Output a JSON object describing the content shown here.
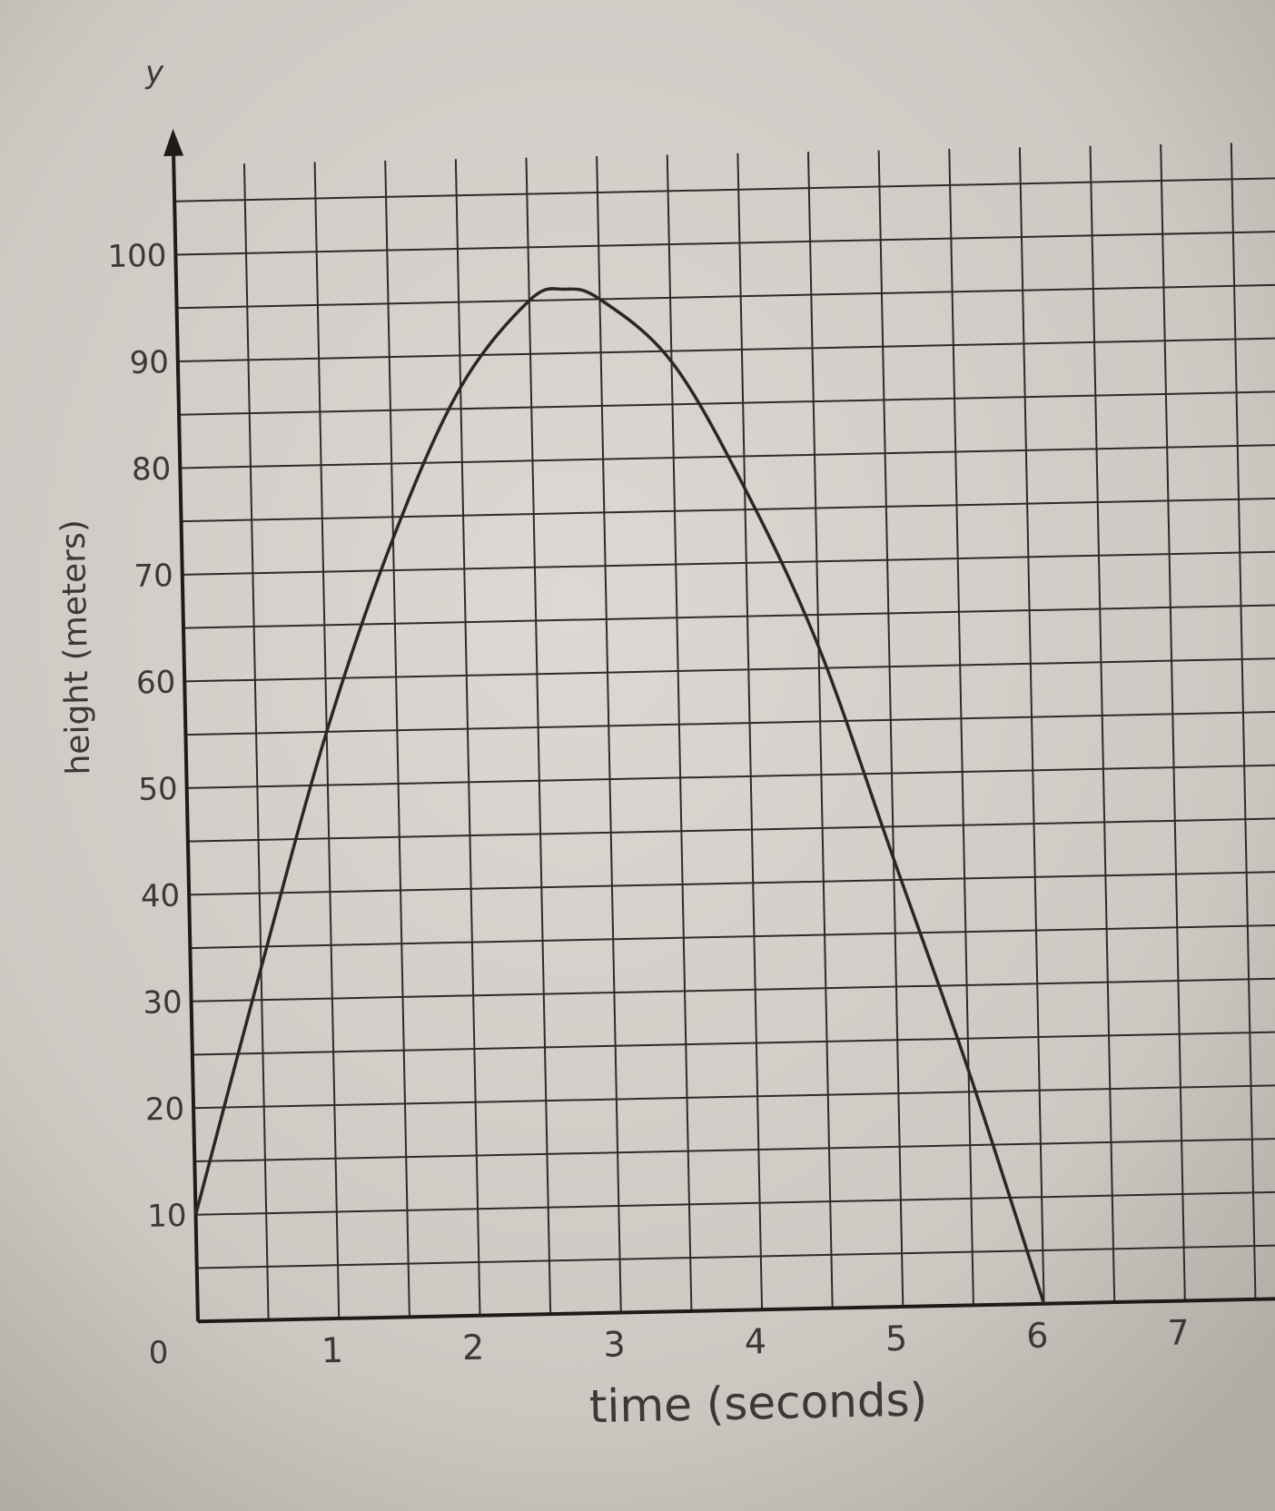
{
  "chart_data": {
    "type": "line",
    "title": "",
    "xlabel": "time (seconds)",
    "ylabel": "height (meters)",
    "y_axis_letter": "y",
    "origin_label": "0",
    "xlim": [
      0,
      7.5
    ],
    "ylim": [
      0,
      105
    ],
    "x_ticks": [
      1,
      2,
      3,
      4,
      5,
      6,
      7
    ],
    "y_ticks": [
      10,
      20,
      30,
      40,
      50,
      60,
      70,
      80,
      90,
      100
    ],
    "x_tick_labels": [
      "1",
      "2",
      "3",
      "4",
      "5",
      "6",
      "7"
    ],
    "y_tick_labels": [
      "10",
      "20",
      "30",
      "40",
      "50",
      "60",
      "70",
      "80",
      "90",
      "100"
    ],
    "grid": true,
    "grid_minor_step_x": 0.5,
    "grid_minor_step_y": 5,
    "series": [
      {
        "x": [
          0,
          0.5,
          1,
          1.5,
          2,
          2.5,
          2.75,
          3,
          3.5,
          4,
          4.5,
          5,
          5.5,
          6
        ],
        "y": [
          10,
          33,
          55,
          73,
          87,
          95,
          96,
          95,
          89,
          77,
          62,
          42,
          22,
          0
        ]
      }
    ]
  },
  "colors": {
    "paper": "#d9d6d1",
    "grid": "#2e2b29",
    "curve": "#2a2725",
    "text": "#3b3836",
    "background": "#8d877f"
  }
}
